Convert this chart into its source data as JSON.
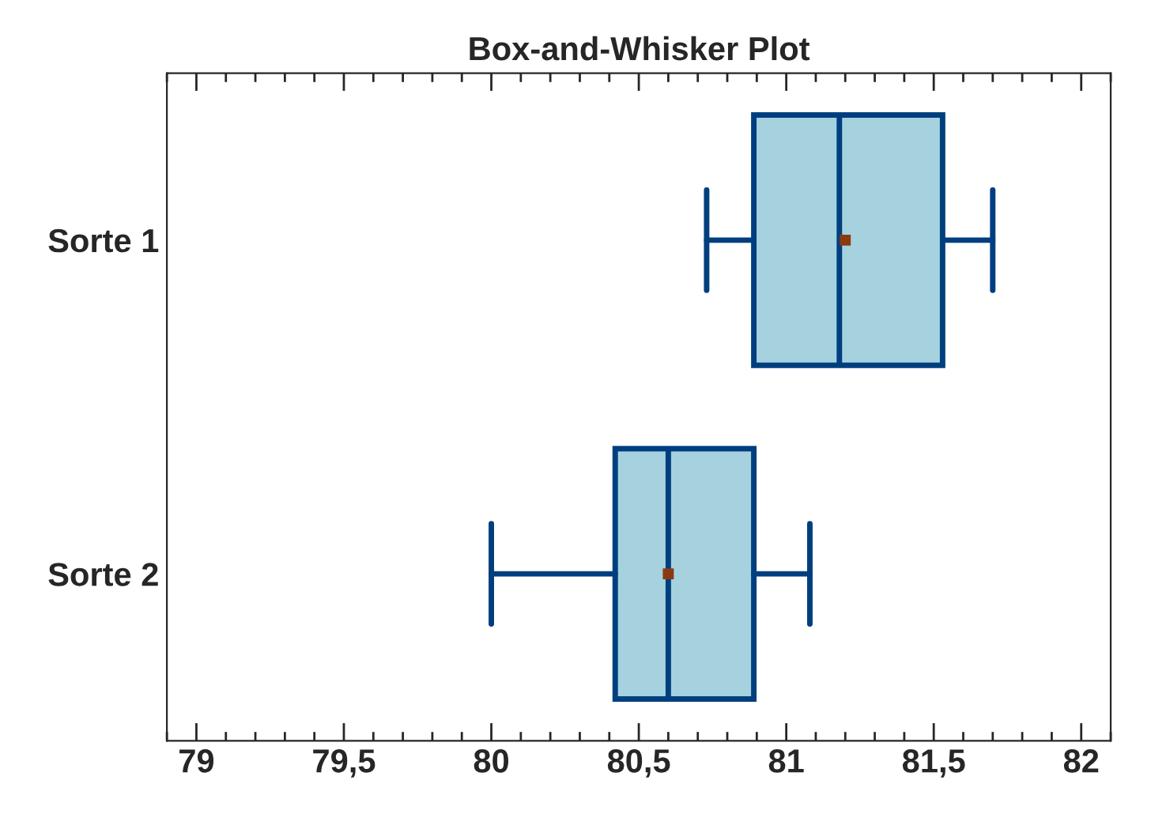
{
  "chart_data": {
    "type": "box",
    "title": "Box-and-Whisker Plot",
    "orientation": "horizontal",
    "categories": [
      "Sorte 1",
      "Sorte 2"
    ],
    "series": [
      {
        "color": "#a6d2df",
        "boxes": [
          {
            "low": 80.73,
            "q1": 80.89,
            "median": 81.18,
            "q3": 81.53,
            "high": 81.7,
            "mean": 81.2
          },
          {
            "low": 80.0,
            "q1": 80.42,
            "median": 80.6,
            "q3": 80.89,
            "high": 81.08,
            "mean": 80.6
          }
        ]
      }
    ],
    "xlim": [
      78.9,
      82.1
    ],
    "xticks": [
      79,
      {
        "value": 79.5,
        "label": "79,5"
      },
      80,
      {
        "value": 80.5,
        "label": "80,5"
      },
      81,
      {
        "value": 81.5,
        "label": "81,5"
      },
      82
    ],
    "grid": false,
    "marker": "square"
  }
}
